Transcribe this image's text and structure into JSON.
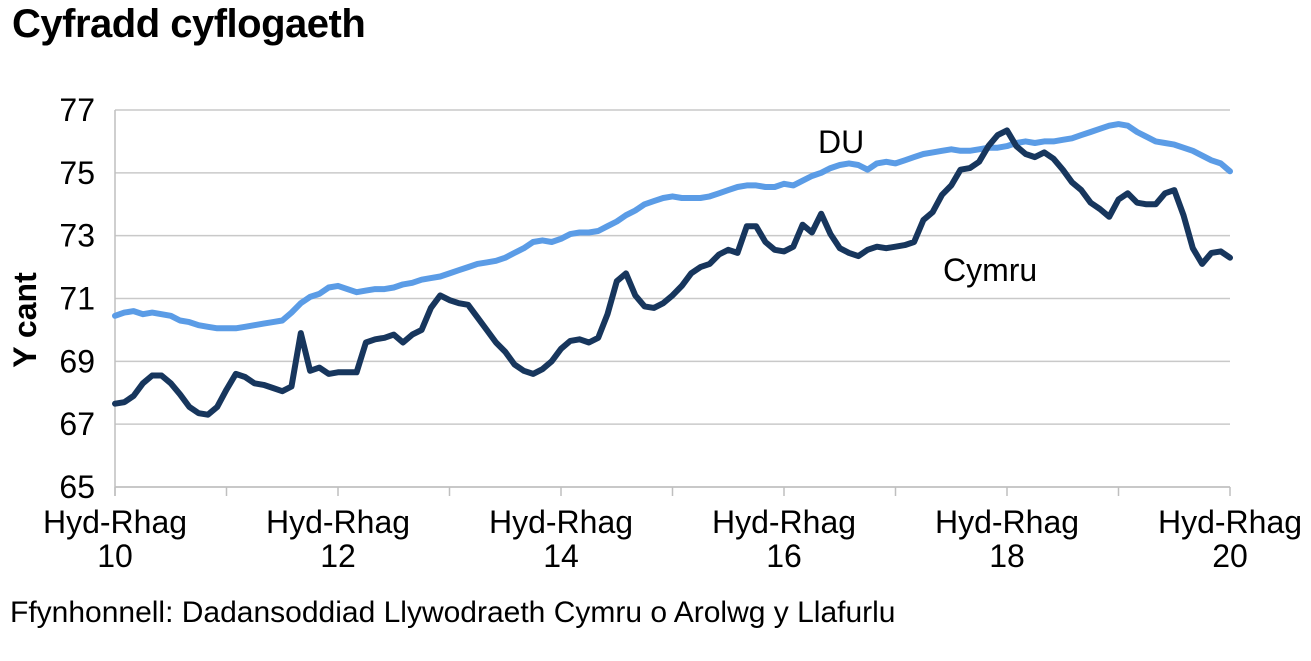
{
  "title": "Cyfradd cyflogaeth",
  "source": "Ffynhonnell: Dadansoddiad Llywodraeth Cymru o Arolwg y Llafurlu",
  "colors": {
    "uk_line": "#5B9CE6",
    "wales_line": "#17365D",
    "gridline": "#C9C9C9",
    "axis": "#BFBFBF",
    "text": "#000000"
  },
  "chart_data": {
    "type": "line",
    "title": "Cyfradd cyflogaeth",
    "xlabel": "",
    "ylabel": "Y cant",
    "ylim": [
      65,
      77
    ],
    "yticks": [
      77,
      75,
      73,
      71,
      69,
      67,
      65
    ],
    "grid": "horizontal",
    "legend_position": "inline-labels",
    "x_unit": "Cyfnodau treigl 3 mis, misol, o Hyd-Rhag 2010 (mis 0) i Hyd-Rhag 2020 (mis 120)",
    "xticks": [
      {
        "month": 0,
        "line1": "Hyd-Rhag",
        "line2": "10"
      },
      {
        "month": 24,
        "line1": "Hyd-Rhag",
        "line2": "12"
      },
      {
        "month": 48,
        "line1": "Hyd-Rhag",
        "line2": "14"
      },
      {
        "month": 72,
        "line1": "Hyd-Rhag",
        "line2": "16"
      },
      {
        "month": 96,
        "line1": "Hyd-Rhag",
        "line2": "18"
      },
      {
        "month": 120,
        "line1": "Hyd-Rhag",
        "line2": "20"
      }
    ],
    "minor_tick_every_months": 12,
    "series": [
      {
        "name": "DU",
        "color": "#5B9CE6",
        "values": [
          70.45,
          70.55,
          70.6,
          70.5,
          70.55,
          70.5,
          70.45,
          70.3,
          70.25,
          70.15,
          70.1,
          70.05,
          70.05,
          70.05,
          70.1,
          70.15,
          70.2,
          70.25,
          70.3,
          70.55,
          70.85,
          71.05,
          71.15,
          71.35,
          71.4,
          71.3,
          71.2,
          71.25,
          71.3,
          71.3,
          71.35,
          71.45,
          71.5,
          71.6,
          71.65,
          71.7,
          71.8,
          71.9,
          72.0,
          72.1,
          72.15,
          72.2,
          72.3,
          72.45,
          72.6,
          72.8,
          72.85,
          72.8,
          72.9,
          73.05,
          73.1,
          73.1,
          73.15,
          73.3,
          73.45,
          73.65,
          73.8,
          74.0,
          74.1,
          74.2,
          74.25,
          74.2,
          74.2,
          74.2,
          74.25,
          74.35,
          74.45,
          74.55,
          74.6,
          74.6,
          74.55,
          74.55,
          74.65,
          74.6,
          74.75,
          74.9,
          75.0,
          75.15,
          75.25,
          75.3,
          75.25,
          75.1,
          75.3,
          75.35,
          75.3,
          75.4,
          75.5,
          75.6,
          75.65,
          75.7,
          75.75,
          75.7,
          75.7,
          75.75,
          75.8,
          75.8,
          75.85,
          75.95,
          76.0,
          75.95,
          76.0,
          76.0,
          76.05,
          76.1,
          76.2,
          76.3,
          76.4,
          76.5,
          76.55,
          76.5,
          76.3,
          76.15,
          76.0,
          75.95,
          75.9,
          75.8,
          75.7,
          75.55,
          75.4,
          75.3,
          75.05
        ]
      },
      {
        "name": "Cymru",
        "color": "#17365D",
        "values": [
          67.65,
          67.7,
          67.9,
          68.3,
          68.55,
          68.55,
          68.3,
          67.95,
          67.55,
          67.35,
          67.3,
          67.55,
          68.1,
          68.6,
          68.5,
          68.3,
          68.25,
          68.15,
          68.05,
          68.2,
          69.9,
          68.7,
          68.8,
          68.6,
          68.65,
          68.65,
          68.65,
          69.6,
          69.7,
          69.75,
          69.85,
          69.6,
          69.85,
          70.0,
          70.7,
          71.1,
          70.95,
          70.85,
          70.8,
          70.4,
          70.0,
          69.6,
          69.3,
          68.9,
          68.7,
          68.6,
          68.75,
          69.0,
          69.4,
          69.65,
          69.7,
          69.6,
          69.75,
          70.5,
          71.55,
          71.8,
          71.1,
          70.75,
          70.7,
          70.85,
          71.1,
          71.4,
          71.8,
          72.0,
          72.1,
          72.4,
          72.55,
          72.45,
          73.3,
          73.3,
          72.8,
          72.55,
          72.5,
          72.65,
          73.35,
          73.1,
          73.7,
          73.05,
          72.6,
          72.45,
          72.35,
          72.55,
          72.65,
          72.6,
          72.65,
          72.7,
          72.8,
          73.5,
          73.75,
          74.3,
          74.6,
          75.1,
          75.15,
          75.35,
          75.85,
          76.2,
          76.35,
          75.85,
          75.6,
          75.5,
          75.65,
          75.45,
          75.1,
          74.7,
          74.45,
          74.05,
          73.85,
          73.6,
          74.15,
          74.35,
          74.05,
          74.0,
          74.0,
          74.35,
          74.45,
          73.65,
          72.6,
          72.1,
          72.45,
          72.5,
          72.3
        ]
      }
    ]
  }
}
